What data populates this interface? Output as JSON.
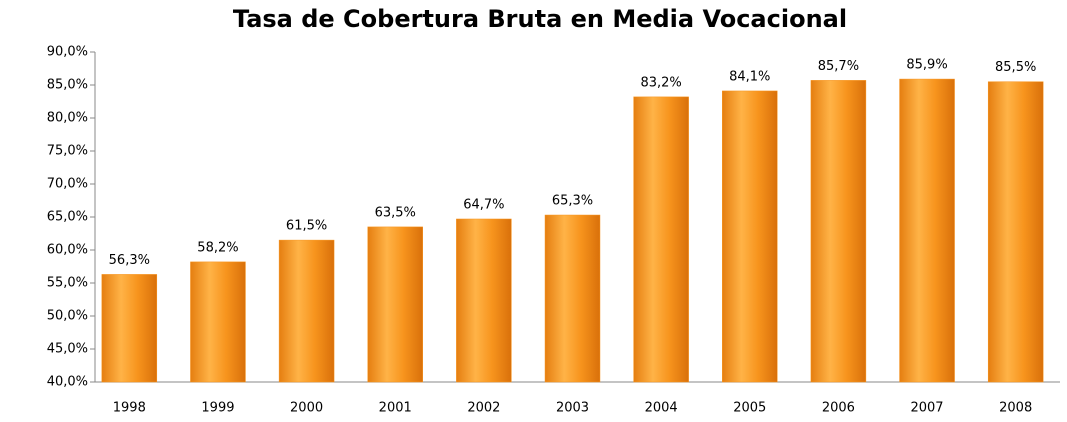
{
  "chart_data": {
    "type": "bar",
    "title": "Tasa de Cobertura Bruta en Media Vocacional",
    "categories": [
      "1998",
      "1999",
      "2000",
      "2001",
      "2002",
      "2003",
      "2004",
      "2005",
      "2006",
      "2007",
      "2008"
    ],
    "values": [
      56.3,
      58.2,
      61.5,
      63.5,
      64.7,
      65.3,
      83.2,
      84.1,
      85.7,
      85.9,
      85.5
    ],
    "value_labels": [
      "56,3%",
      "58,2%",
      "61,5%",
      "63,5%",
      "64,7%",
      "65,3%",
      "83,2%",
      "84,1%",
      "85,7%",
      "85,9%",
      "85,5%"
    ],
    "color": "#f7941d",
    "ylim": [
      40,
      90
    ],
    "yticks": [
      {
        "value": 40,
        "label": "40,0%"
      },
      {
        "value": 45,
        "label": "45,0%"
      },
      {
        "value": 50,
        "label": "50,0%"
      },
      {
        "value": 55,
        "label": "55,0%"
      },
      {
        "value": 60,
        "label": "60,0%"
      },
      {
        "value": 65,
        "label": "65,0%"
      },
      {
        "value": 70,
        "label": "70,0%"
      },
      {
        "value": 75,
        "label": "75,0%"
      },
      {
        "value": 80,
        "label": "80,0%"
      },
      {
        "value": 85,
        "label": "85,0%"
      },
      {
        "value": 90,
        "label": "90,0%"
      }
    ],
    "grid": false
  }
}
